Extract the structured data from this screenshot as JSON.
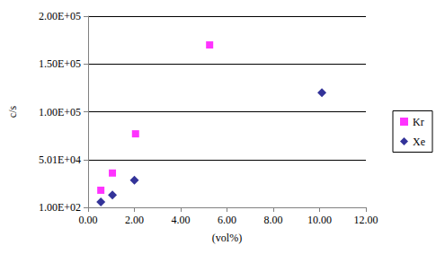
{
  "chart_data": {
    "type": "scatter",
    "x_label": "(vol%)",
    "y_label": "c/s",
    "series": [
      {
        "name": "Kr",
        "color": "#ff00ff",
        "marker": "square",
        "x": [
          0.55,
          1.05,
          2.05,
          5.25
        ],
        "values": [
          18000,
          36000,
          77000,
          170000
        ]
      },
      {
        "name": "Xe",
        "color": "#000080",
        "marker": "diamond",
        "x": [
          0.55,
          1.05,
          2.0,
          10.1
        ],
        "values": [
          5700,
          13000,
          28500,
          120000
        ]
      }
    ],
    "xlim": [
      0,
      12
    ],
    "xticks": [
      {
        "value": 0,
        "label": "0.00"
      },
      {
        "value": 2,
        "label": "2.00"
      },
      {
        "value": 4,
        "label": "4.00"
      },
      {
        "value": 6,
        "label": "6.00"
      },
      {
        "value": 8,
        "label": "8.00"
      },
      {
        "value": 10,
        "label": "10.00"
      },
      {
        "value": 12,
        "label": "12.00"
      }
    ],
    "ylim": [
      100,
      200100
    ],
    "yticks": [
      {
        "value": 100,
        "label": "1.00E+02"
      },
      {
        "value": 50100,
        "label": "5.01E+04"
      },
      {
        "value": 100100,
        "label": "1.00E+05"
      },
      {
        "value": 150100,
        "label": "1.50E+05"
      },
      {
        "value": 200100,
        "label": "2.00E+05"
      }
    ],
    "grid": true,
    "legend": "right"
  }
}
